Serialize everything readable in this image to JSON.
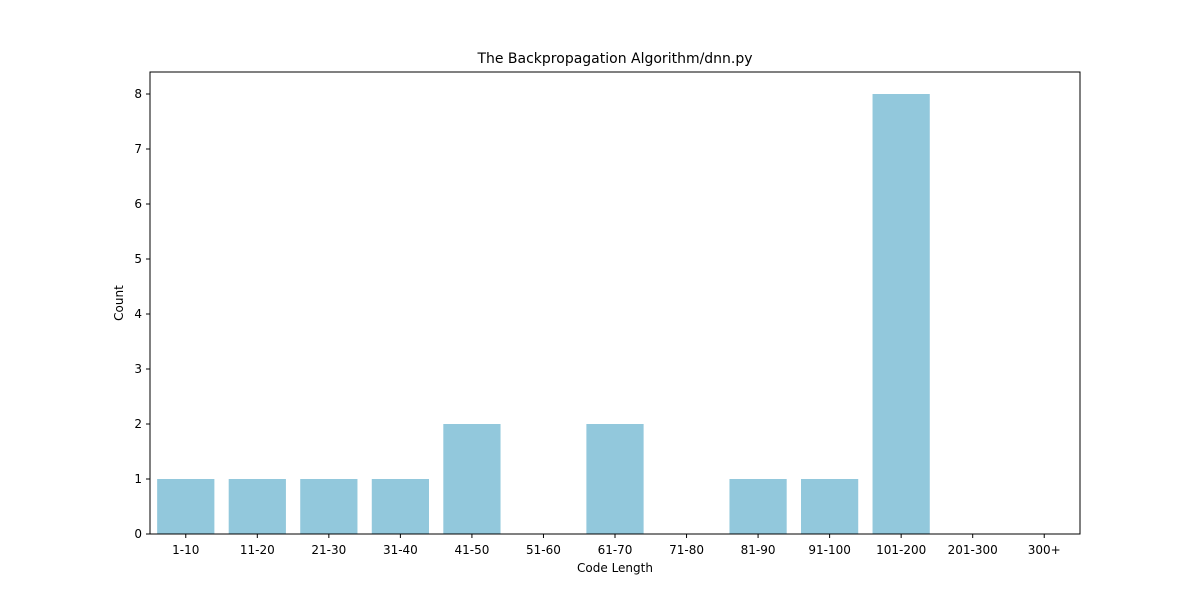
{
  "chart_data": {
    "type": "bar",
    "title": "The Backpropagation Algorithm/dnn.py",
    "xlabel": "Code Length",
    "ylabel": "Count",
    "categories": [
      "1-10",
      "11-20",
      "21-30",
      "31-40",
      "41-50",
      "51-60",
      "61-70",
      "71-80",
      "81-90",
      "91-100",
      "101-200",
      "201-300",
      "300+"
    ],
    "values": [
      1,
      1,
      1,
      1,
      2,
      0,
      2,
      0,
      1,
      1,
      8,
      0,
      0
    ],
    "ylim": [
      0,
      8.4
    ],
    "yticks": [
      0,
      1,
      2,
      3,
      4,
      5,
      6,
      7,
      8
    ],
    "grid": false,
    "legend": "none",
    "bar_color": "#92c8dc"
  }
}
